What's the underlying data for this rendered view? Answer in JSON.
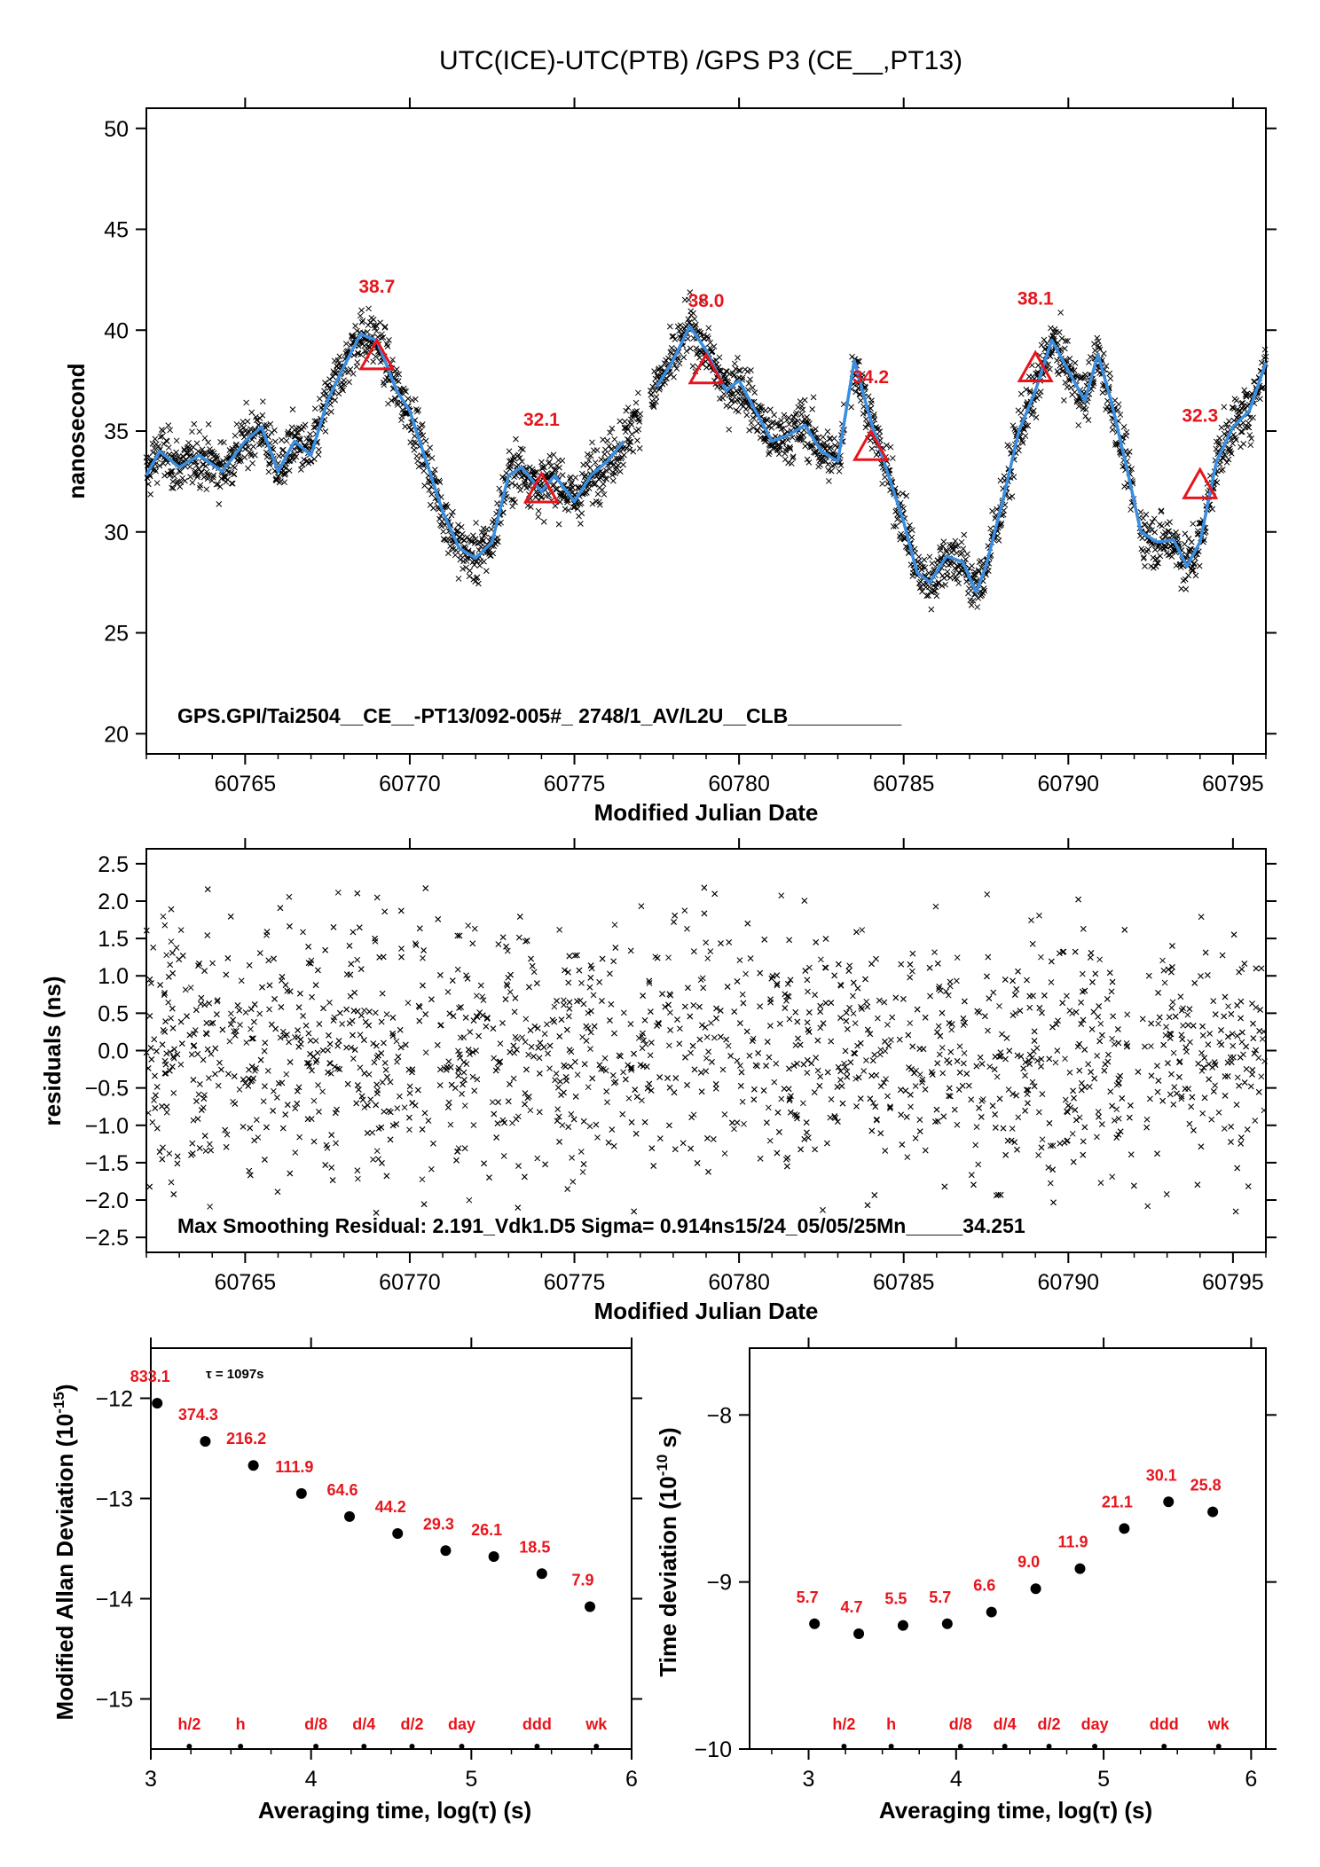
{
  "colors": {
    "fit_line": "#3a8ee0",
    "marker": "#e8141c",
    "points": "#000000"
  },
  "chart_data": [
    {
      "type": "scatter",
      "title": "UTC(ICE)-UTC(PTB)  /GPS  P3  (CE__,PT13)",
      "xlabel": "Modified Julian Date",
      "ylabel": "nanosecond",
      "xlim": [
        60762,
        60796
      ],
      "ylim": [
        19,
        51
      ],
      "xticks": [
        60765,
        60770,
        60775,
        60780,
        60785,
        60790,
        60795
      ],
      "yticks": [
        20,
        25,
        30,
        35,
        40,
        45,
        50
      ],
      "annotation": "GPS.GPI/Tai2504__CE__-PT13/092-005#_  2748/1_AV/L2U__CLB__________",
      "fit_line": [
        [
          60762,
          32.8
        ],
        [
          60762.4,
          34
        ],
        [
          60763,
          33.2
        ],
        [
          60763.6,
          33.8
        ],
        [
          60764.3,
          33
        ],
        [
          60765,
          34.5
        ],
        [
          60765.5,
          35.2
        ],
        [
          60766,
          33
        ],
        [
          60766.5,
          34.5
        ],
        [
          60767,
          33.8
        ],
        [
          60767.5,
          36.5
        ],
        [
          60768,
          38.2
        ],
        [
          60768.5,
          39.8
        ],
        [
          60769,
          39.5
        ],
        [
          60769.6,
          37
        ],
        [
          60770,
          36
        ],
        [
          60770.5,
          33.5
        ],
        [
          60771,
          31
        ],
        [
          60771.5,
          29.2
        ],
        [
          60772,
          28.7
        ],
        [
          60772.5,
          29.5
        ],
        [
          60773,
          32.8
        ],
        [
          60773.4,
          33.2
        ],
        [
          60774,
          32
        ],
        [
          60774.4,
          32.8
        ],
        [
          60775,
          31.5
        ],
        [
          60775.5,
          32.8
        ],
        [
          60776,
          33.5
        ],
        [
          60776.5,
          34.5
        ],
        [
          60777,
          36
        ],
        [
          60777.5,
          37.2
        ],
        [
          60778,
          38.5
        ],
        [
          60778.5,
          40.2
        ],
        [
          60779,
          39
        ],
        [
          60779.6,
          37
        ],
        [
          60780,
          37.5
        ],
        [
          60780.5,
          36
        ],
        [
          60781,
          34.5
        ],
        [
          60781.5,
          34.8
        ],
        [
          60782,
          35.3
        ],
        [
          60782.5,
          34
        ],
        [
          60783,
          33.5
        ],
        [
          60783.5,
          38.5
        ],
        [
          60784,
          35.5
        ],
        [
          60784.5,
          33
        ],
        [
          60785,
          30.5
        ],
        [
          60785.4,
          28
        ],
        [
          60785.8,
          27.5
        ],
        [
          60786.3,
          28.8
        ],
        [
          60786.8,
          28.5
        ],
        [
          60787.2,
          27
        ],
        [
          60787.5,
          28.3
        ],
        [
          60788,
          31.5
        ],
        [
          60788.5,
          35
        ],
        [
          60789,
          37
        ],
        [
          60789.5,
          39.5
        ],
        [
          60790,
          38
        ],
        [
          60790.5,
          36.5
        ],
        [
          60790.9,
          38.8
        ],
        [
          60791.3,
          36.5
        ],
        [
          60791.8,
          33
        ],
        [
          60792.2,
          30
        ],
        [
          60792.7,
          29.5
        ],
        [
          60793.2,
          29.6
        ],
        [
          60793.6,
          28.3
        ],
        [
          60794,
          29.5
        ],
        [
          60794.5,
          33.5
        ],
        [
          60795,
          35.2
        ],
        [
          60795.5,
          36
        ],
        [
          60796,
          38.4
        ]
      ],
      "fit_gaps": [
        [
          60777.0,
          60777.3
        ],
        [
          60783.2,
          60783.4
        ],
        [
          60792.0,
          60792.15
        ]
      ],
      "noise_sd_ns": 0.9,
      "markers": [
        {
          "x": 60769.0,
          "y": 38.7,
          "label": "38.7"
        },
        {
          "x": 60774.0,
          "y": 32.1,
          "label": "32.1"
        },
        {
          "x": 60779.0,
          "y": 38.0,
          "label": "38.0"
        },
        {
          "x": 60784.0,
          "y": 34.2,
          "label": "34.2"
        },
        {
          "x": 60789.0,
          "y": 38.1,
          "label": "38.1"
        },
        {
          "x": 60794.0,
          "y": 32.3,
          "label": "32.3"
        }
      ]
    },
    {
      "type": "scatter",
      "xlabel": "Modified Julian Date",
      "ylabel": "residuals (ns)",
      "xlim": [
        60762,
        60796
      ],
      "ylim": [
        -2.7,
        2.7
      ],
      "xticks": [
        60765,
        60770,
        60775,
        60780,
        60785,
        60790,
        60795
      ],
      "yticks": [
        "2.5",
        "2.0",
        "1.5",
        "1.0",
        "0.5",
        "0.0",
        "−0.5",
        "−1.0",
        "−1.5",
        "−2.0",
        "−2.5"
      ],
      "annotation": "Max Smoothing Residual: 2.191_Vdk1.D5  Sigma= 0.914ns15/24_05/05/25Mn_____34.251",
      "residual_range": [
        -2.2,
        2.2
      ]
    },
    {
      "type": "scatter",
      "xlabel": "Averaging time, log(τ) (s)",
      "ylabel": "Modified Allan Deviation (10",
      "ylabel_sup": "-15",
      "ylabel_end": ")",
      "xlim": [
        3,
        6
      ],
      "ylim": [
        -15.5,
        -11.5
      ],
      "xticks": [
        "3",
        "4",
        "5",
        "6"
      ],
      "yticks": [
        "−12",
        "−13",
        "−14",
        "−15"
      ],
      "tau_note": "τ = 1097s",
      "x": [
        3.04,
        3.34,
        3.64,
        3.94,
        4.24,
        4.54,
        4.84,
        5.14,
        5.44,
        5.74
      ],
      "y": [
        -12.05,
        -12.43,
        -12.67,
        -12.95,
        -13.18,
        -13.35,
        -13.52,
        -13.58,
        -13.75,
        -14.08
      ],
      "labels": [
        "833.1",
        "374.3",
        "216.2",
        "111.9",
        "64.6",
        "44.2",
        "29.3",
        "26.1",
        "18.5",
        "7.9"
      ],
      "base_marks": [
        {
          "x": 3.24,
          "label": "h/2"
        },
        {
          "x": 3.56,
          "label": "h"
        },
        {
          "x": 4.03,
          "label": "d/8"
        },
        {
          "x": 4.33,
          "label": "d/4"
        },
        {
          "x": 4.63,
          "label": "d/2"
        },
        {
          "x": 4.94,
          "label": "day"
        },
        {
          "x": 5.41,
          "label": "ddd"
        },
        {
          "x": 5.78,
          "label": "wk"
        }
      ]
    },
    {
      "type": "scatter",
      "xlabel": "Averaging time, log(τ) (s)",
      "ylabel": "Time deviation (10",
      "ylabel_sup": "-10",
      "ylabel_end": " s)",
      "xlim": [
        2.6,
        6.1
      ],
      "ylim": [
        -10,
        -7.6
      ],
      "xticks": [
        "3",
        "4",
        "5",
        "6"
      ],
      "yticks": [
        "−8",
        "−9",
        "−10"
      ],
      "x": [
        3.04,
        3.34,
        3.64,
        3.94,
        4.24,
        4.54,
        4.84,
        5.14,
        5.44,
        5.74
      ],
      "y": [
        -9.25,
        -9.31,
        -9.26,
        -9.25,
        -9.18,
        -9.04,
        -8.92,
        -8.68,
        -8.52,
        -8.58
      ],
      "labels": [
        "5.7",
        "4.7",
        "5.5",
        "5.7",
        "6.6",
        "9.0",
        "11.9",
        "21.1",
        "30.1",
        "25.8"
      ],
      "base_marks": [
        {
          "x": 3.24,
          "label": "h/2"
        },
        {
          "x": 3.56,
          "label": "h"
        },
        {
          "x": 4.03,
          "label": "d/8"
        },
        {
          "x": 4.33,
          "label": "d/4"
        },
        {
          "x": 4.63,
          "label": "d/2"
        },
        {
          "x": 4.94,
          "label": "day"
        },
        {
          "x": 5.41,
          "label": "ddd"
        },
        {
          "x": 5.78,
          "label": "wk"
        }
      ]
    }
  ]
}
